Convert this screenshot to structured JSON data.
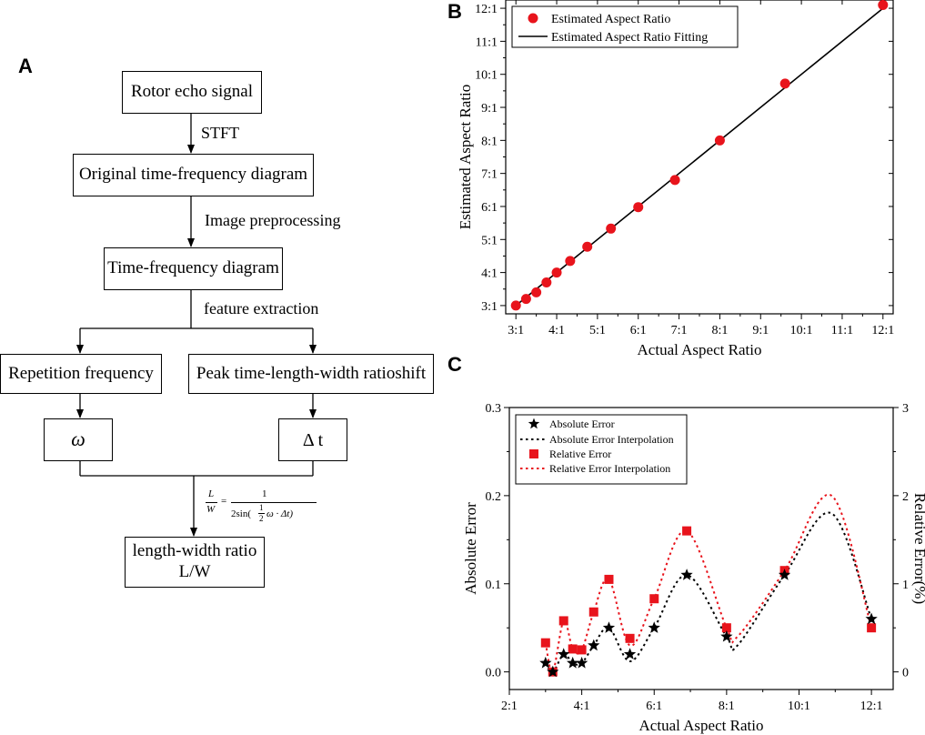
{
  "panels": {
    "a": "A",
    "b": "B",
    "c": "C"
  },
  "flowchart": {
    "box_rotor": "Rotor echo signal",
    "arrow_stft": "STFT",
    "box_original": "Original time-frequency diagram",
    "arrow_preprocess": "Image preprocessing",
    "box_tfd": "Time-frequency diagram",
    "arrow_feature": "feature extraction",
    "box_repetition": "Repetition frequency",
    "box_peak": "Peak time-length-width ratioshift",
    "box_omega": "ω",
    "box_delta_t": "Δ t",
    "formula_lhs_num": "L",
    "formula_lhs_den": "W",
    "formula_eq": "=",
    "formula_rhs_num": "1",
    "formula_rhs_den_pre": "2sin(",
    "formula_half_num": "1",
    "formula_half_den": "2",
    "formula_rhs_den_post": "ω · Δt)",
    "box_result_line1": "length-width ratio",
    "box_result_line2": "L/W"
  },
  "chart_data": [
    {
      "type": "scatter",
      "id": "B",
      "xlabel": "Actual Aspect Ratio",
      "ylabel": "Estimated Aspect Ratio",
      "xlim": [
        2.75,
        12.25
      ],
      "ylim": [
        2.75,
        12.25
      ],
      "xticks": [
        3,
        4,
        5,
        6,
        7,
        8,
        9,
        10,
        11,
        12
      ],
      "xtick_labels": [
        "3:1",
        "4:1",
        "5:1",
        "6:1",
        "7:1",
        "8:1",
        "9:1",
        "10:1",
        "11:1",
        "12:1"
      ],
      "yticks": [
        3,
        4,
        5,
        6,
        7,
        8,
        9,
        10,
        11,
        12
      ],
      "ytick_labels": [
        "3:1",
        "4:1",
        "5:1",
        "6:1",
        "7:1",
        "8:1",
        "9:1",
        "10:1",
        "11:1",
        "12:1"
      ],
      "legend": [
        "Estimated Aspect Ratio",
        "Estimated Aspect Ratio Fitting"
      ],
      "legend_position": "top-left",
      "series": [
        {
          "name": "Estimated Aspect Ratio",
          "color": "#e8141c",
          "x": [
            3.0,
            3.25,
            3.5,
            3.75,
            4.0,
            4.33,
            4.75,
            5.33,
            6.0,
            6.9,
            8.0,
            9.6,
            12.0
          ],
          "y": [
            3.0,
            3.2,
            3.4,
            3.7,
            4.0,
            4.35,
            4.78,
            5.33,
            5.98,
            6.8,
            8.0,
            9.72,
            12.1
          ]
        },
        {
          "name": "Estimated Aspect Ratio Fitting",
          "color": "#000000",
          "x": [
            2.98,
            12.1
          ],
          "y": [
            2.98,
            12.1
          ]
        }
      ]
    },
    {
      "type": "scatter",
      "id": "C",
      "xlabel": "Actual Aspect Ratio",
      "ylabel": "Absolute Error",
      "y2label": "Relative Error(%)",
      "xlim": [
        2.0,
        12.6
      ],
      "ylim": [
        -0.02,
        0.3
      ],
      "y2lim": [
        -0.2,
        3
      ],
      "xticks": [
        2,
        4,
        6,
        8,
        10,
        12
      ],
      "xtick_labels": [
        "2:1",
        "4:1",
        "6:1",
        "8:1",
        "10:1",
        "12:1"
      ],
      "yticks": [
        0.0,
        0.1,
        0.2,
        0.3
      ],
      "ytick_labels": [
        "0.0",
        "0.1",
        "0.2",
        "0.3"
      ],
      "y2ticks": [
        0,
        1,
        2,
        3
      ],
      "y2tick_labels": [
        "0",
        "1",
        "2",
        "3"
      ],
      "legend": [
        "Absolute Error",
        "Absolute Error Interpolation",
        "Relative Error",
        "Relative Error Interpolation"
      ],
      "legend_position": "top-left",
      "series": [
        {
          "name": "Absolute Error",
          "color": "#000000",
          "axis": "left",
          "x": [
            3.0,
            3.2,
            3.5,
            3.75,
            4.0,
            4.33,
            4.75,
            5.33,
            6.0,
            6.9,
            8.0,
            9.6,
            12.0
          ],
          "y": [
            0.01,
            0.0,
            0.02,
            0.01,
            0.01,
            0.03,
            0.05,
            0.02,
            0.05,
            0.11,
            0.04,
            0.11,
            0.06
          ]
        },
        {
          "name": "Absolute Error Interpolation",
          "color": "#000000",
          "axis": "left",
          "x": [
            3.0,
            3.2,
            3.5,
            3.75,
            4.0,
            4.33,
            4.75,
            5.33,
            6.0,
            6.9,
            8.0,
            8.3,
            9.6,
            10.9,
            12.0
          ],
          "y": [
            0.01,
            0.0,
            0.02,
            0.01,
            0.01,
            0.03,
            0.05,
            0.012,
            0.05,
            0.11,
            0.04,
            0.03,
            0.11,
            0.18,
            0.06
          ]
        },
        {
          "name": "Relative Error",
          "color": "#e8141c",
          "axis": "right",
          "x": [
            3.0,
            3.2,
            3.5,
            3.75,
            4.0,
            4.33,
            4.75,
            5.33,
            6.0,
            6.9,
            8.0,
            9.6,
            12.0
          ],
          "y": [
            0.33,
            0.0,
            0.58,
            0.26,
            0.25,
            0.68,
            1.05,
            0.38,
            0.83,
            1.6,
            0.5,
            1.15,
            0.5
          ]
        },
        {
          "name": "Relative Error Interpolation",
          "color": "#e8141c",
          "axis": "right",
          "x": [
            3.0,
            3.2,
            3.5,
            3.75,
            4.0,
            4.33,
            4.75,
            5.33,
            6.0,
            6.9,
            8.0,
            8.3,
            9.6,
            10.9,
            12.0
          ],
          "y": [
            0.33,
            0.0,
            0.58,
            0.26,
            0.25,
            0.68,
            1.05,
            0.3,
            0.83,
            1.6,
            0.5,
            0.4,
            1.15,
            2.0,
            0.5
          ]
        }
      ]
    }
  ]
}
